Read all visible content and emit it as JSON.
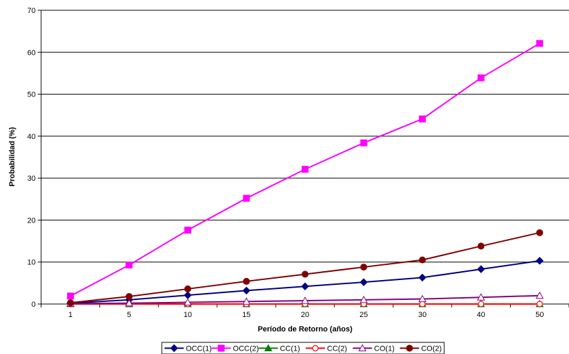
{
  "chart_data": {
    "type": "line",
    "categories": [
      "1",
      "5",
      "10",
      "15",
      "20",
      "25",
      "30",
      "40",
      "50"
    ],
    "xlabel": "Período de Retorno (años)",
    "ylabel": "Probabilidad (%)",
    "ylim": [
      0,
      70
    ],
    "yticks": [
      "0",
      "10",
      "20",
      "30",
      "40",
      "50",
      "60",
      "70"
    ],
    "grid": "horizontal",
    "legend_position": "bottom",
    "series": [
      {
        "name": "OCC(1)",
        "color": "#000080",
        "marker": "diamond",
        "values": [
          0.2,
          1.0,
          2.1,
          3.2,
          4.2,
          5.2,
          6.3,
          8.3,
          10.3
        ]
      },
      {
        "name": "OCC(2)",
        "color": "#ff00ff",
        "marker": "square",
        "values": [
          1.9,
          9.3,
          17.6,
          25.2,
          32.1,
          38.4,
          44.1,
          53.9,
          62.1
        ]
      },
      {
        "name": "CC(1)",
        "color": "#008000",
        "marker": "triangle",
        "values": [
          0.0,
          0.0,
          0.0,
          0.0,
          0.0,
          0.0,
          0.0,
          0.0,
          0.0
        ]
      },
      {
        "name": "CC(2)",
        "color": "#ff0000",
        "marker": "circle-open",
        "values": [
          0.0,
          0.0,
          0.0,
          0.0,
          0.0,
          0.0,
          0.0,
          0.0,
          0.0
        ]
      },
      {
        "name": "CO(1)",
        "color": "#800080",
        "marker": "triangle-open",
        "values": [
          0.1,
          0.2,
          0.4,
          0.6,
          0.8,
          1.0,
          1.2,
          1.6,
          2.0
        ]
      },
      {
        "name": "CO(2)",
        "color": "#800000",
        "marker": "circle",
        "values": [
          0.3,
          1.8,
          3.6,
          5.4,
          7.1,
          8.8,
          10.5,
          13.8,
          17.0
        ]
      }
    ]
  }
}
